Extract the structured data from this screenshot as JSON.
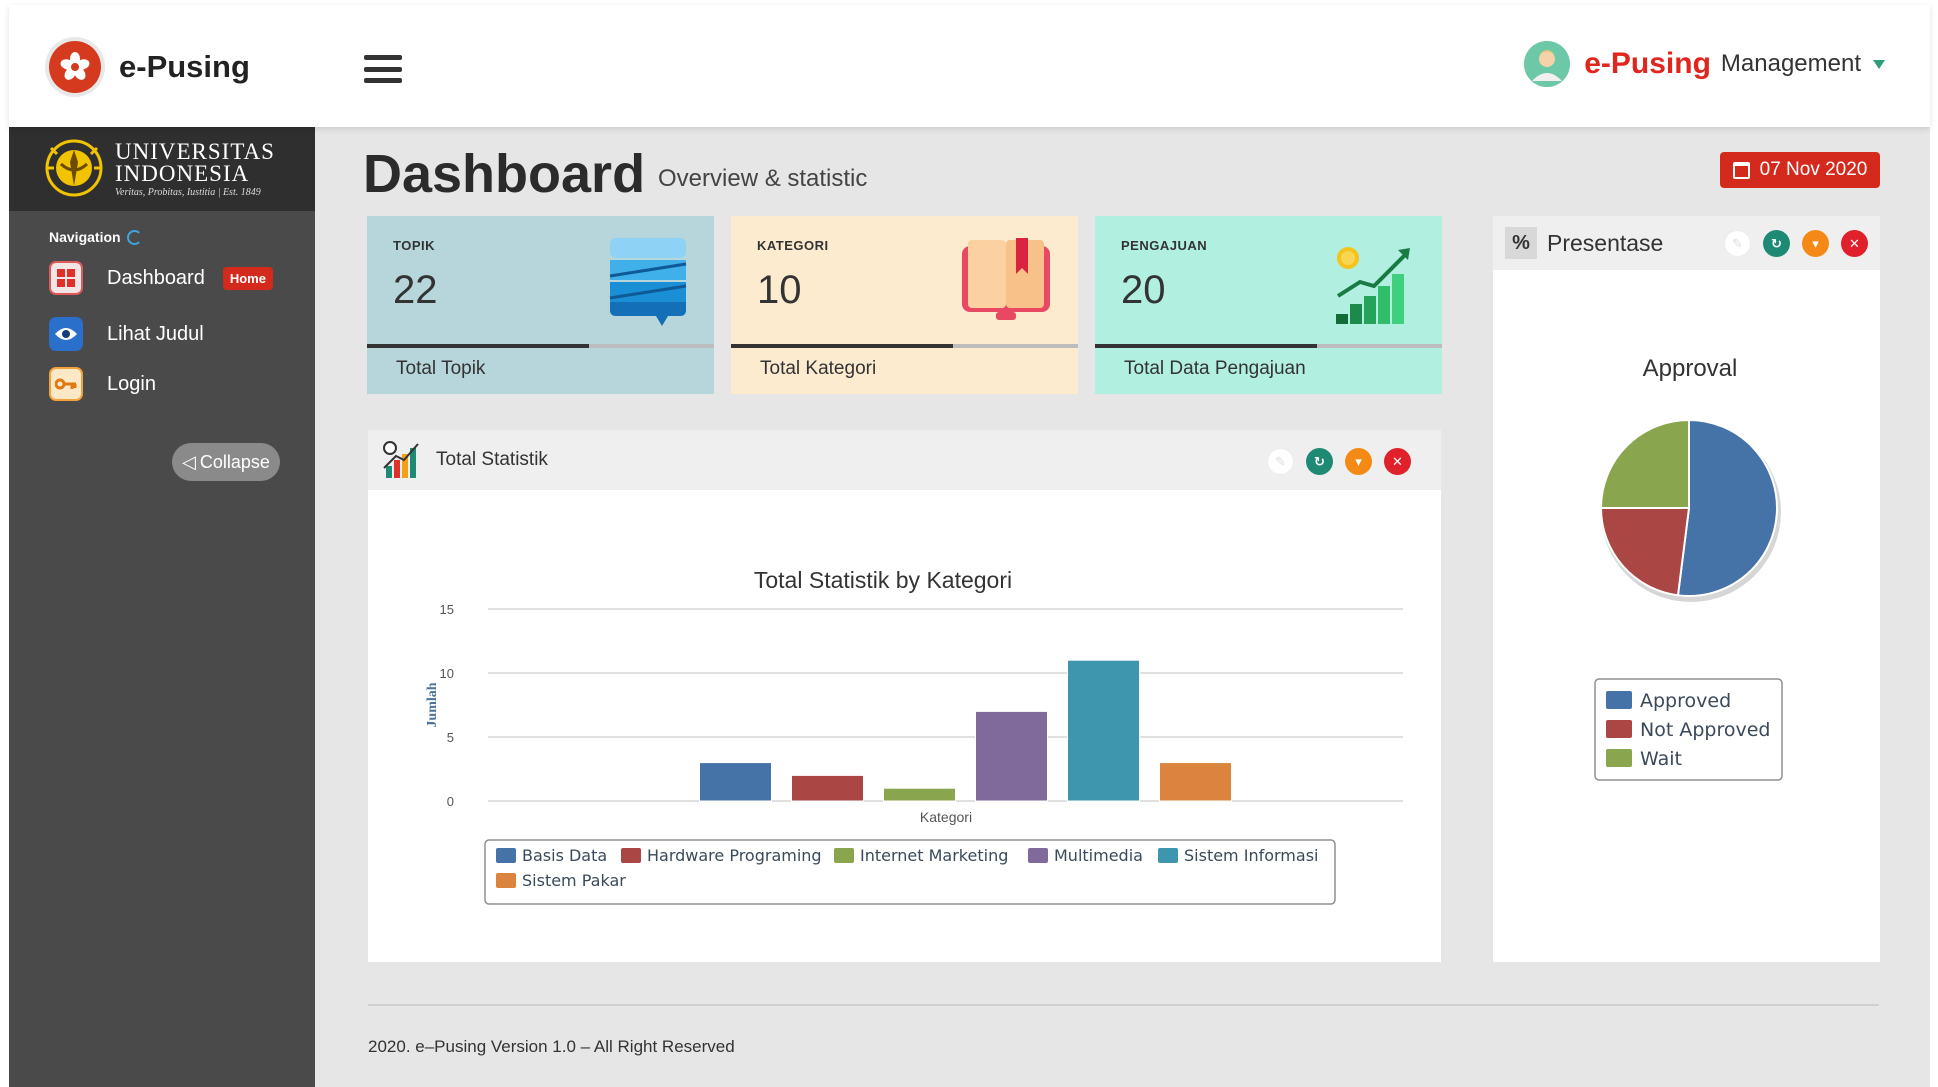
{
  "header": {
    "brand_name": "e-Pusing",
    "user_brand": "e-Pusing",
    "user_role": "Management"
  },
  "sidebar": {
    "university_line1": "UNIVERSITAS",
    "university_line2": "INDONESIA",
    "university_motto": "Veritas, Probitas, Iustitia | Est. 1849",
    "navigation_label": "Navigation",
    "items": [
      {
        "label": "Dashboard",
        "badge": "Home",
        "icon": "dashboard-icon"
      },
      {
        "label": "Lihat Judul",
        "icon": "eye-icon"
      },
      {
        "label": "Login",
        "icon": "key-icon"
      }
    ],
    "collapse_label": "Collapse"
  },
  "page": {
    "title": "Dashboard",
    "subtitle": "Overview & statistic",
    "date": "07 Nov 2020"
  },
  "cards": [
    {
      "label": "TOPIK",
      "value": "22",
      "footer": "Total Topik",
      "color": "#b7d6dc",
      "progress": 0.64
    },
    {
      "label": "KATEGORI",
      "value": "10",
      "footer": "Total Kategori",
      "color": "#fdebd0",
      "progress": 0.64
    },
    {
      "label": "PENGAJUAN",
      "value": "20",
      "footer": "Total Data Pengajuan",
      "color": "#b1efe0",
      "progress": 0.64
    }
  ],
  "panels": {
    "statistik_title": "Total Statistik",
    "presentase_title": "Presentase"
  },
  "chart_data": [
    {
      "type": "bar",
      "title": "Total Statistik by Kategori",
      "xlabel": "Kategori",
      "ylabel": "Jumlah",
      "ylim": [
        0,
        15
      ],
      "yticks": [
        0,
        5,
        10,
        15
      ],
      "grid": true,
      "legend_position": "bottom",
      "series": [
        {
          "name": "Basis Data",
          "value": 3,
          "color": "#4572a7"
        },
        {
          "name": "Hardware Programing",
          "value": 2,
          "color": "#aa4643"
        },
        {
          "name": "Internet Marketing",
          "value": 1,
          "color": "#89a54e"
        },
        {
          "name": "Multimedia",
          "value": 7,
          "color": "#80699b"
        },
        {
          "name": "Sistem Informasi",
          "value": 11,
          "color": "#3d96ae"
        },
        {
          "name": "Sistem Pakar",
          "value": 3,
          "color": "#db843d"
        }
      ]
    },
    {
      "type": "pie",
      "title": "Approval",
      "legend_position": "bottom",
      "slices": [
        {
          "name": "Approved",
          "value": 52,
          "color": "#4572a7"
        },
        {
          "name": "Not Approved",
          "value": 23,
          "color": "#aa4643"
        },
        {
          "name": "Wait",
          "value": 25,
          "color": "#89a54e"
        }
      ]
    }
  ],
  "footer": {
    "text": "2020. e–Pusing Version 1.0 – All Right Reserved"
  }
}
